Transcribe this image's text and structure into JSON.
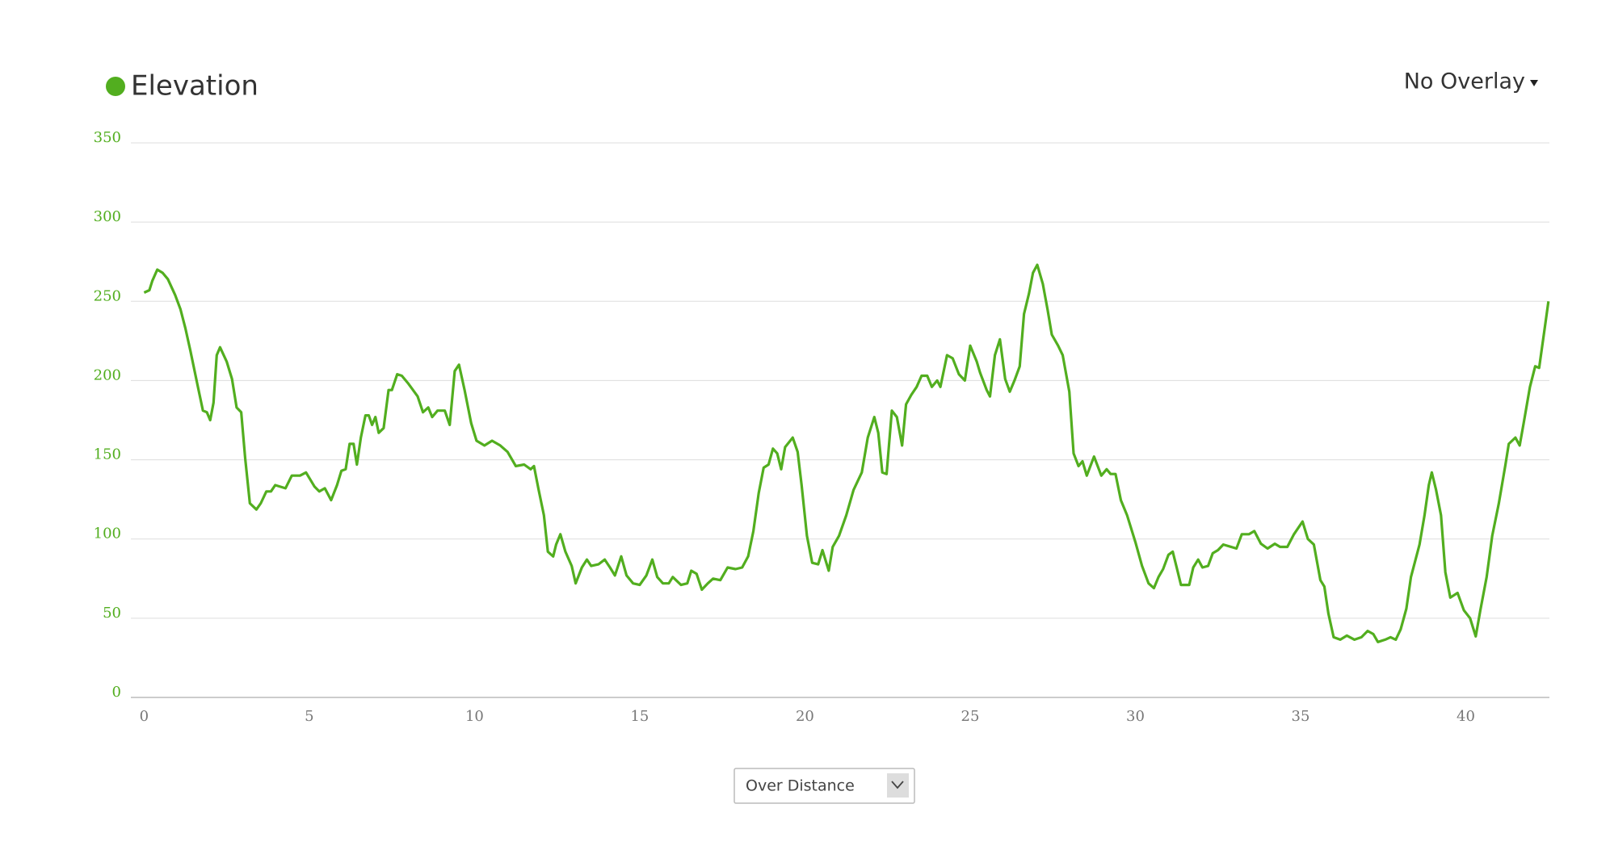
{
  "chart_data": {
    "type": "line",
    "title": "Elevation",
    "color": "#52ae1f",
    "x": [
      0,
      0.16,
      0.25,
      0.4,
      0.56,
      0.72,
      0.94,
      1.1,
      1.25,
      1.4,
      1.63,
      1.78,
      1.9,
      2.0,
      2.1,
      2.2,
      2.3,
      2.5,
      2.66,
      2.8,
      2.94,
      3.06,
      3.2,
      3.4,
      3.53,
      3.7,
      3.84,
      3.97,
      4.28,
      4.47,
      4.72,
      4.9,
      5.16,
      5.3,
      5.47,
      5.66,
      5.84,
      5.97,
      6.1,
      6.22,
      6.34,
      6.44,
      6.56,
      6.7,
      6.8,
      6.9,
      7.0,
      7.1,
      7.25,
      7.4,
      7.5,
      7.66,
      7.8,
      8.0,
      8.28,
      8.44,
      8.6,
      8.72,
      8.88,
      9.1,
      9.25,
      9.4,
      9.53,
      9.7,
      9.9,
      10.06,
      10.3,
      10.53,
      10.78,
      11.0,
      11.25,
      11.5,
      11.7,
      11.8,
      11.94,
      12.1,
      12.22,
      12.38,
      12.47,
      12.6,
      12.75,
      12.94,
      13.06,
      13.25,
      13.4,
      13.53,
      13.75,
      13.94,
      14.1,
      14.25,
      14.44,
      14.6,
      14.8,
      15.0,
      15.2,
      15.38,
      15.53,
      15.7,
      15.88,
      16.0,
      16.25,
      16.44,
      16.56,
      16.72,
      16.88,
      17.06,
      17.22,
      17.44,
      17.66,
      17.9,
      18.1,
      18.28,
      18.44,
      18.6,
      18.75,
      18.9,
      19.03,
      19.16,
      19.28,
      19.4,
      19.63,
      19.78,
      19.9,
      20.06,
      20.22,
      20.4,
      20.53,
      20.72,
      20.84,
      21.03,
      21.25,
      21.47,
      21.72,
      21.9,
      22.1,
      22.22,
      22.34,
      22.47,
      22.63,
      22.78,
      22.94,
      23.06,
      23.22,
      23.38,
      23.53,
      23.7,
      23.84,
      24.0,
      24.1,
      24.3,
      24.47,
      24.66,
      24.84,
      25.0,
      25.2,
      25.3,
      25.5,
      25.6,
      25.75,
      25.9,
      26.06,
      26.2,
      26.34,
      26.5,
      26.63,
      26.78,
      26.9,
      27.03,
      27.2,
      27.34,
      27.47,
      27.66,
      27.8,
      28.0,
      28.13,
      28.28,
      28.4,
      28.53,
      28.75,
      28.97,
      29.13,
      29.25,
      29.4,
      29.56,
      29.75,
      30.0,
      30.2,
      30.4,
      30.56,
      30.7,
      30.84,
      31.0,
      31.13,
      31.25,
      31.38,
      31.63,
      31.75,
      31.9,
      32.03,
      32.2,
      32.34,
      32.5,
      32.66,
      33.06,
      33.22,
      33.44,
      33.6,
      33.8,
      34.0,
      34.22,
      34.38,
      34.6,
      34.8,
      35.06,
      35.22,
      35.4,
      35.6,
      35.72,
      35.84,
      36.0,
      36.2,
      36.4,
      36.63,
      36.84,
      37.03,
      37.2,
      37.34,
      37.56,
      37.72,
      37.88,
      38.03,
      38.2,
      38.34,
      38.6,
      38.75,
      38.88,
      38.97,
      39.1,
      39.25,
      39.38,
      39.53,
      39.75,
      39.94,
      40.13,
      40.3,
      40.44,
      40.63,
      40.8,
      41.0,
      41.2,
      41.3,
      41.5,
      41.63,
      41.75,
      41.94,
      42.1,
      42.22,
      42.38,
      42.5
    ],
    "values": [
      255.5,
      257,
      263,
      270,
      268,
      264,
      254,
      245,
      233,
      219,
      196,
      181,
      180,
      175,
      186,
      216,
      221,
      212,
      201,
      183,
      180,
      151,
      122.5,
      118.6,
      122.5,
      130,
      130,
      134,
      132,
      140,
      140,
      142,
      133,
      130,
      132,
      124.5,
      134,
      143,
      144,
      160,
      160,
      147,
      164,
      178,
      178,
      172,
      177,
      167,
      170,
      194,
      194,
      204,
      203,
      198,
      190,
      180,
      183,
      177,
      181,
      181,
      172,
      206,
      210,
      194,
      173,
      162,
      159,
      162,
      159,
      155,
      146,
      147,
      144,
      146,
      131,
      115,
      92,
      89,
      96.5,
      103,
      92,
      83,
      72,
      82,
      87,
      83,
      84,
      87,
      82,
      77,
      89,
      77,
      72,
      71,
      77,
      87,
      76,
      72,
      72,
      76,
      71,
      72,
      80,
      78,
      68,
      72,
      75,
      74,
      82,
      81,
      82,
      89,
      105,
      129,
      145,
      147,
      157,
      154,
      144,
      158,
      164,
      155,
      134,
      102,
      85,
      84,
      93,
      80,
      95,
      102,
      115,
      131,
      142,
      164,
      177,
      167,
      142,
      141,
      181,
      177,
      159,
      185,
      191,
      196,
      203,
      203,
      196,
      200,
      196,
      216,
      214,
      204,
      200,
      222,
      212,
      205,
      194,
      190,
      216,
      226,
      201,
      193,
      200,
      209,
      242,
      255,
      268,
      273,
      261,
      245,
      229,
      222,
      216,
      193,
      154,
      146,
      149,
      140,
      152,
      140,
      144,
      141,
      141,
      124.5,
      115,
      98,
      83,
      72,
      69,
      76,
      81,
      90,
      92,
      82,
      71,
      71,
      82,
      87,
      82,
      83,
      91,
      93,
      96.5,
      94,
      103,
      103,
      105,
      97,
      94,
      97,
      95,
      95,
      103,
      111,
      100,
      96.5,
      74,
      70,
      53,
      38,
      36.5,
      39,
      36.5,
      38,
      42,
      40,
      35,
      36.5,
      38,
      36.5,
      43,
      56,
      76,
      96.5,
      115,
      134,
      142,
      131,
      115,
      79,
      63,
      66,
      55,
      50,
      38.5,
      55,
      76,
      102,
      122.5,
      147,
      160,
      164,
      159,
      173,
      196,
      209,
      208,
      232,
      250
    ],
    "xlim": [
      -0.4,
      42.53
    ],
    "xticks": [
      0,
      5,
      10,
      15,
      20,
      25,
      30,
      35,
      40
    ],
    "ylim": [
      0,
      350
    ],
    "yticks": [
      0,
      50,
      100,
      150,
      200,
      250,
      300,
      350
    ],
    "grid": true
  },
  "controls": {
    "overlay": "No Overlay",
    "x_mode": "Over Distance"
  }
}
